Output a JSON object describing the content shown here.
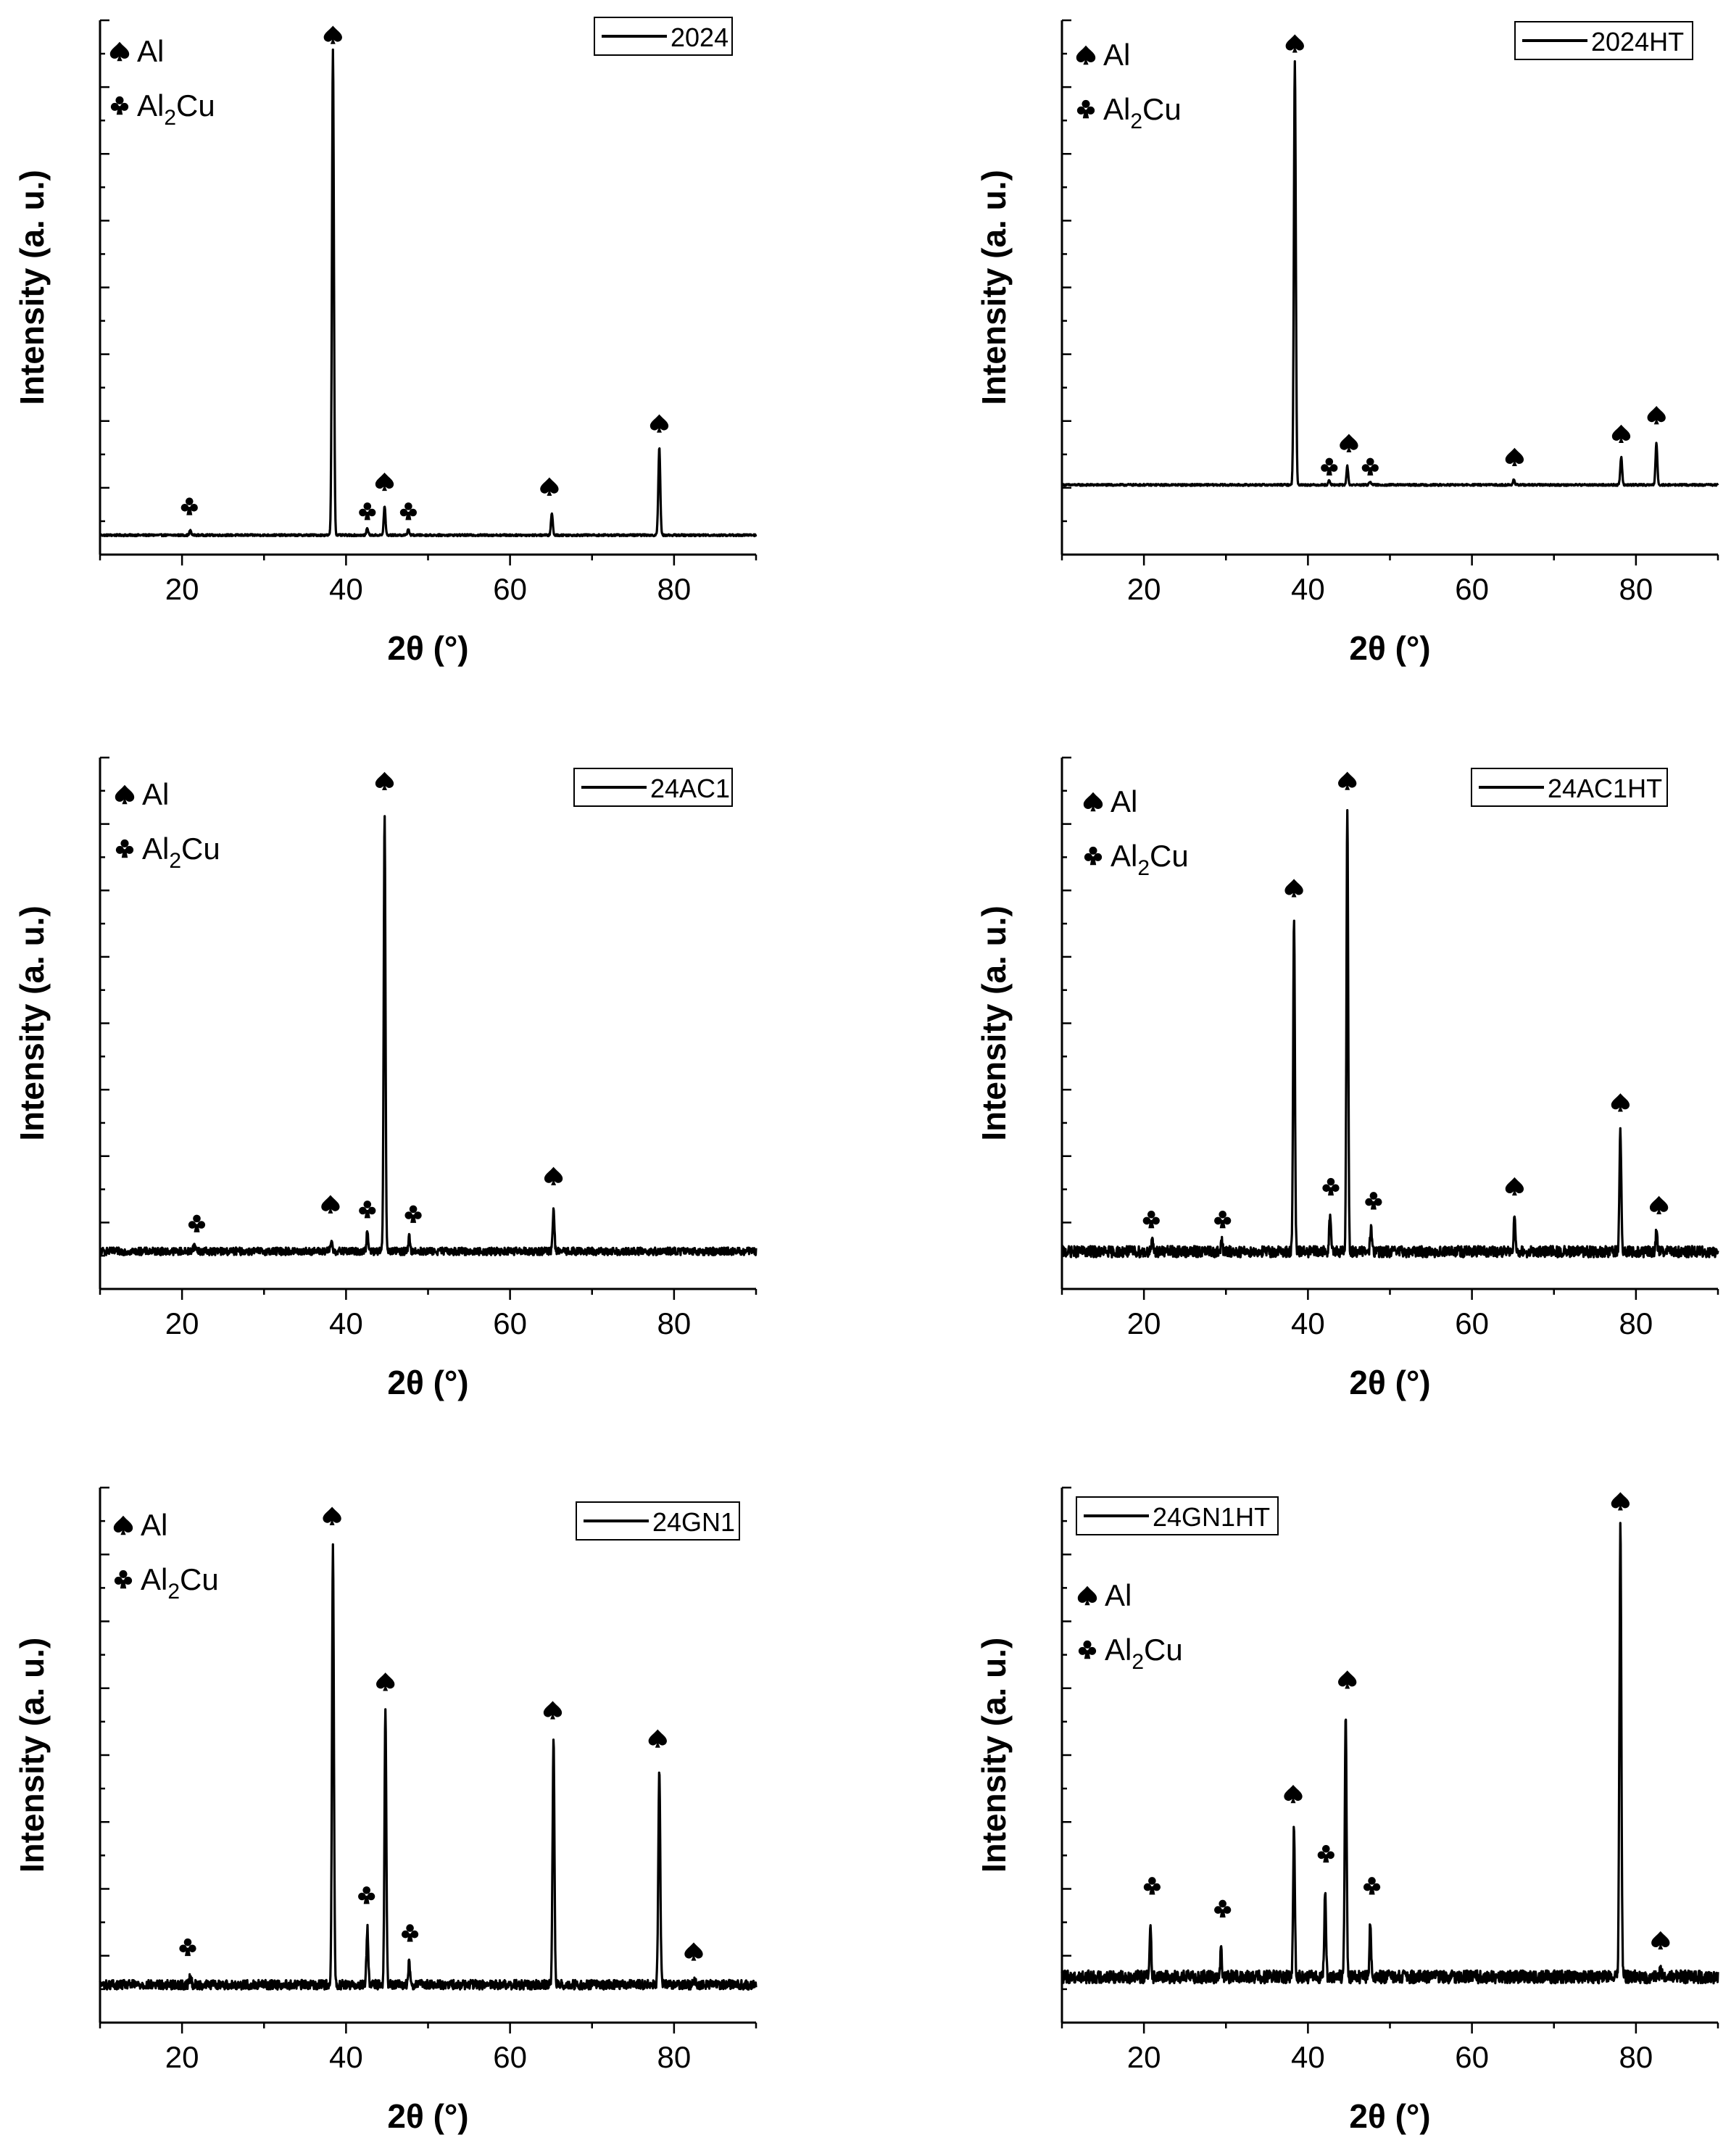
{
  "chart_data": [
    {
      "type": "line",
      "legend": "2024",
      "xlabel": "2θ (°)",
      "ylabel": "Intensity (a. u.)",
      "xlim": [
        10,
        90
      ],
      "ylim": [
        -0.04,
        1.06
      ],
      "xticks": [
        20,
        40,
        60,
        80
      ],
      "baseline": 0.0,
      "noise": 0.002,
      "al_label": "Al",
      "al2cu_label": "Al",
      "al2cu_sub": "2",
      "al2cu_tail": "Cu",
      "peaks": [
        {
          "x": 21.0,
          "h": 0.01,
          "w": 0.25
        },
        {
          "x": 38.4,
          "h": 1.0,
          "w": 0.28
        },
        {
          "x": 42.6,
          "h": 0.015,
          "w": 0.25
        },
        {
          "x": 44.7,
          "h": 0.06,
          "w": 0.25
        },
        {
          "x": 47.6,
          "h": 0.012,
          "w": 0.25
        },
        {
          "x": 65.1,
          "h": 0.045,
          "w": 0.25
        },
        {
          "x": 78.2,
          "h": 0.18,
          "w": 0.28
        }
      ],
      "markers": [
        {
          "type": "club",
          "x": 20.9,
          "y": 0.06
        },
        {
          "type": "spade",
          "x": 38.4,
          "y": 1.03
        },
        {
          "type": "club",
          "x": 42.6,
          "y": 0.05
        },
        {
          "type": "spade",
          "x": 44.7,
          "y": 0.11
        },
        {
          "type": "club",
          "x": 47.6,
          "y": 0.05
        },
        {
          "type": "spade",
          "x": 64.8,
          "y": 0.1
        },
        {
          "type": "spade",
          "x": 78.2,
          "y": 0.23
        }
      ]
    },
    {
      "type": "line",
      "legend": "2024HT",
      "xlabel": "2θ (°)",
      "ylabel": "Intensity (a. u.)",
      "xlim": [
        10,
        90
      ],
      "ylim": [
        -0.15,
        1.0
      ],
      "xticks": [
        20,
        40,
        60,
        80
      ],
      "baseline": 0.0,
      "noise": 0.002,
      "al_label": "Al",
      "al2cu_label": "Al",
      "al2cu_sub": "2",
      "al2cu_tail": "Cu",
      "peaks": [
        {
          "x": 38.4,
          "h": 0.91,
          "w": 0.28
        },
        {
          "x": 42.6,
          "h": 0.01,
          "w": 0.25
        },
        {
          "x": 44.8,
          "h": 0.04,
          "w": 0.25
        },
        {
          "x": 47.6,
          "h": 0.008,
          "w": 0.25
        },
        {
          "x": 65.1,
          "h": 0.01,
          "w": 0.25
        },
        {
          "x": 78.2,
          "h": 0.06,
          "w": 0.26
        },
        {
          "x": 82.5,
          "h": 0.09,
          "w": 0.26
        }
      ],
      "markers": [
        {
          "type": "spade",
          "x": 38.4,
          "y": 0.95
        },
        {
          "type": "club",
          "x": 42.6,
          "y": 0.04
        },
        {
          "type": "spade",
          "x": 45.0,
          "y": 0.09
        },
        {
          "type": "club",
          "x": 47.6,
          "y": 0.04
        },
        {
          "type": "spade",
          "x": 65.2,
          "y": 0.06
        },
        {
          "type": "spade",
          "x": 78.2,
          "y": 0.11
        },
        {
          "type": "spade",
          "x": 82.5,
          "y": 0.15
        }
      ]
    },
    {
      "type": "line",
      "legend": "24AC1",
      "xlabel": "2θ (°)",
      "ylabel": "Intensity (a. u.)",
      "xlim": [
        10,
        90
      ],
      "ylim": [
        -0.08,
        1.05
      ],
      "xticks": [
        20,
        40,
        60,
        80
      ],
      "baseline": 0.0,
      "noise": 0.008,
      "al_label": "Al",
      "al2cu_label": "Al",
      "al2cu_sub": "2",
      "al2cu_tail": "Cu",
      "peaks": [
        {
          "x": 21.5,
          "h": 0.01,
          "w": 0.5
        },
        {
          "x": 38.2,
          "h": 0.02,
          "w": 0.3
        },
        {
          "x": 42.6,
          "h": 0.04,
          "w": 0.25
        },
        {
          "x": 44.7,
          "h": 0.93,
          "w": 0.25
        },
        {
          "x": 47.7,
          "h": 0.03,
          "w": 0.25
        },
        {
          "x": 65.3,
          "h": 0.09,
          "w": 0.25
        }
      ],
      "markers": [
        {
          "type": "club",
          "x": 21.8,
          "y": 0.06
        },
        {
          "type": "spade",
          "x": 38.1,
          "y": 0.1
        },
        {
          "type": "club",
          "x": 42.6,
          "y": 0.09
        },
        {
          "type": "spade",
          "x": 44.7,
          "y": 1.0
        },
        {
          "type": "club",
          "x": 48.2,
          "y": 0.08
        },
        {
          "type": "spade",
          "x": 65.3,
          "y": 0.16
        }
      ]
    },
    {
      "type": "line",
      "legend": "24AC1HT",
      "xlabel": "2θ (°)",
      "ylabel": "Intensity (a. u.)",
      "xlim": [
        10,
        90
      ],
      "ylim": [
        -0.08,
        1.06
      ],
      "xticks": [
        20,
        40,
        60,
        80
      ],
      "baseline": 0.0,
      "noise": 0.012,
      "al_label": "Al",
      "al2cu_label": "Al",
      "al2cu_sub": "2",
      "al2cu_tail": "Cu",
      "peaks": [
        {
          "x": 21.0,
          "h": 0.02,
          "w": 0.25
        },
        {
          "x": 29.5,
          "h": 0.02,
          "w": 0.25
        },
        {
          "x": 38.3,
          "h": 0.72,
          "w": 0.25
        },
        {
          "x": 42.7,
          "h": 0.08,
          "w": 0.25
        },
        {
          "x": 44.8,
          "h": 0.95,
          "w": 0.25
        },
        {
          "x": 47.7,
          "h": 0.05,
          "w": 0.25
        },
        {
          "x": 65.2,
          "h": 0.08,
          "w": 0.25
        },
        {
          "x": 78.1,
          "h": 0.26,
          "w": 0.26
        },
        {
          "x": 82.5,
          "h": 0.04,
          "w": 0.25
        }
      ],
      "markers": [
        {
          "type": "club",
          "x": 20.9,
          "y": 0.07
        },
        {
          "type": "club",
          "x": 29.6,
          "y": 0.07
        },
        {
          "type": "spade",
          "x": 38.3,
          "y": 0.78
        },
        {
          "type": "club",
          "x": 42.8,
          "y": 0.14
        },
        {
          "type": "spade",
          "x": 44.8,
          "y": 1.01
        },
        {
          "type": "club",
          "x": 48.0,
          "y": 0.11
        },
        {
          "type": "spade",
          "x": 65.2,
          "y": 0.14
        },
        {
          "type": "spade",
          "x": 78.1,
          "y": 0.32
        },
        {
          "type": "spade",
          "x": 82.8,
          "y": 0.1
        }
      ]
    },
    {
      "type": "line",
      "legend": "24GN1",
      "xlabel": "2θ (°)",
      "ylabel": "Intensity (a. u.)",
      "xlim": [
        10,
        90
      ],
      "ylim": [
        -0.08,
        1.05
      ],
      "xticks": [
        20,
        40,
        60,
        80
      ],
      "baseline": 0.0,
      "noise": 0.01,
      "al_label": "Al",
      "al2cu_label": "Al",
      "al2cu_sub": "2",
      "al2cu_tail": "Cu",
      "peaks": [
        {
          "x": 21.0,
          "h": 0.015,
          "w": 0.3
        },
        {
          "x": 38.4,
          "h": 0.93,
          "w": 0.27
        },
        {
          "x": 42.6,
          "h": 0.12,
          "w": 0.25
        },
        {
          "x": 44.8,
          "h": 0.58,
          "w": 0.26
        },
        {
          "x": 47.7,
          "h": 0.05,
          "w": 0.25
        },
        {
          "x": 65.3,
          "h": 0.52,
          "w": 0.26
        },
        {
          "x": 78.2,
          "h": 0.45,
          "w": 0.28
        },
        {
          "x": 82.5,
          "h": 0.01,
          "w": 0.25
        }
      ],
      "markers": [
        {
          "type": "club",
          "x": 20.7,
          "y": 0.08
        },
        {
          "type": "spade",
          "x": 38.3,
          "y": 0.99
        },
        {
          "type": "club",
          "x": 42.5,
          "y": 0.19
        },
        {
          "type": "spade",
          "x": 44.8,
          "y": 0.64
        },
        {
          "type": "club",
          "x": 47.8,
          "y": 0.11
        },
        {
          "type": "spade",
          "x": 65.2,
          "y": 0.58
        },
        {
          "type": "spade",
          "x": 78.0,
          "y": 0.52
        },
        {
          "type": "spade",
          "x": 82.4,
          "y": 0.07
        }
      ]
    },
    {
      "type": "line",
      "legend": "24GN1HT",
      "xlabel": "2θ (°)",
      "ylabel": "Intensity (a. u.)",
      "xlim": [
        10,
        90
      ],
      "ylim": [
        -0.1,
        1.07
      ],
      "xticks": [
        20,
        40,
        60,
        80
      ],
      "baseline": 0.0,
      "noise": 0.014,
      "al_label": "Al",
      "al2cu_label": "Al",
      "al2cu_sub": "2",
      "al2cu_tail": "Cu",
      "peaks": [
        {
          "x": 20.8,
          "h": 0.12,
          "w": 0.22
        },
        {
          "x": 29.4,
          "h": 0.06,
          "w": 0.22
        },
        {
          "x": 38.3,
          "h": 0.33,
          "w": 0.25
        },
        {
          "x": 42.1,
          "h": 0.18,
          "w": 0.25
        },
        {
          "x": 44.6,
          "h": 0.58,
          "w": 0.26
        },
        {
          "x": 47.6,
          "h": 0.12,
          "w": 0.22
        },
        {
          "x": 78.1,
          "h": 0.99,
          "w": 0.27
        },
        {
          "x": 83.0,
          "h": 0.02,
          "w": 0.25
        }
      ],
      "markers": [
        {
          "type": "club",
          "x": 21.0,
          "y": 0.2
        },
        {
          "type": "club",
          "x": 29.6,
          "y": 0.15
        },
        {
          "type": "spade",
          "x": 38.2,
          "y": 0.4
        },
        {
          "type": "club",
          "x": 42.2,
          "y": 0.27
        },
        {
          "type": "spade",
          "x": 44.8,
          "y": 0.65
        },
        {
          "type": "club",
          "x": 47.8,
          "y": 0.2
        },
        {
          "type": "spade",
          "x": 78.1,
          "y": 1.04
        },
        {
          "type": "spade",
          "x": 83.0,
          "y": 0.08
        }
      ]
    }
  ]
}
